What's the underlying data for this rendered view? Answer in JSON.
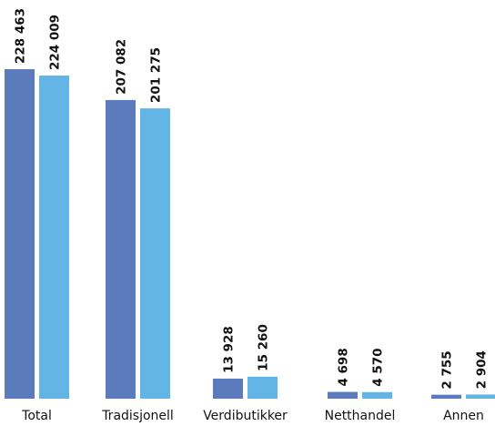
{
  "chart_data": {
    "type": "bar",
    "categories": [
      "Total",
      "Tradisjonell",
      "Verdibutikker",
      "Netthandel",
      "Annen"
    ],
    "series": [
      {
        "values": [
          228463,
          207082,
          13928,
          4698,
          2755
        ],
        "labels": [
          "228 463",
          "207 082",
          "13 928",
          "4 698",
          "2 755"
        ],
        "color": "#5b7bbd"
      },
      {
        "values": [
          224009,
          201275,
          15260,
          4570,
          2904
        ],
        "labels": [
          "224 009",
          "201 275",
          "15 260",
          "4 570",
          "2 904"
        ],
        "color": "#62b5e5"
      }
    ],
    "ylim": [
      0,
      228463
    ],
    "grid": false,
    "legend": "none"
  }
}
